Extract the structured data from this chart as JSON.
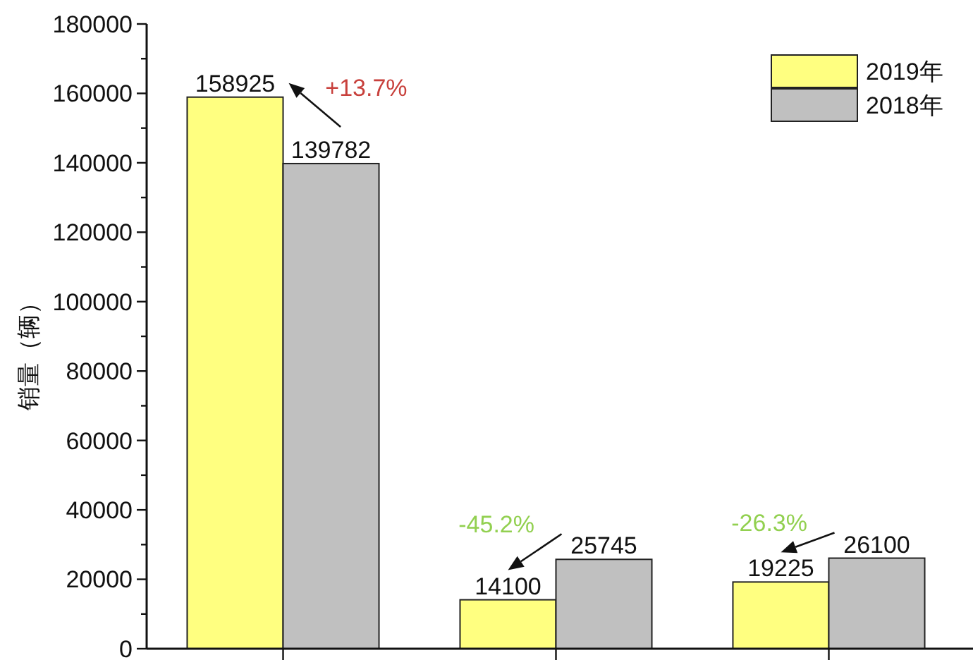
{
  "chart_data": {
    "type": "bar",
    "categories": [
      null,
      null,
      null
    ],
    "series": [
      {
        "name": "2019年",
        "color": "#ffff80",
        "values": [
          158925,
          14100,
          19225
        ]
      },
      {
        "name": "2018年",
        "color": "#c0c0c0",
        "values": [
          139782,
          25745,
          26100
        ]
      }
    ],
    "ylabel": "销量（辆）",
    "ylim": [
      0,
      180000
    ],
    "yticks": [
      0,
      {
        "value": 10000,
        "label": null
      },
      20000,
      {
        "value": 30000,
        "label": null
      },
      40000,
      {
        "value": 50000,
        "label": null
      },
      60000,
      {
        "value": 70000,
        "label": null
      },
      80000,
      {
        "value": 90000,
        "label": null
      },
      100000,
      {
        "value": 110000,
        "label": null
      },
      120000,
      {
        "value": 130000,
        "label": null
      },
      140000,
      {
        "value": 150000,
        "label": null
      },
      160000,
      {
        "value": 170000,
        "label": null
      },
      180000
    ],
    "data_labels": true,
    "legend": "top right",
    "annotations": [
      "+13.7%",
      "-45.2%",
      "-26.3%"
    ]
  }
}
